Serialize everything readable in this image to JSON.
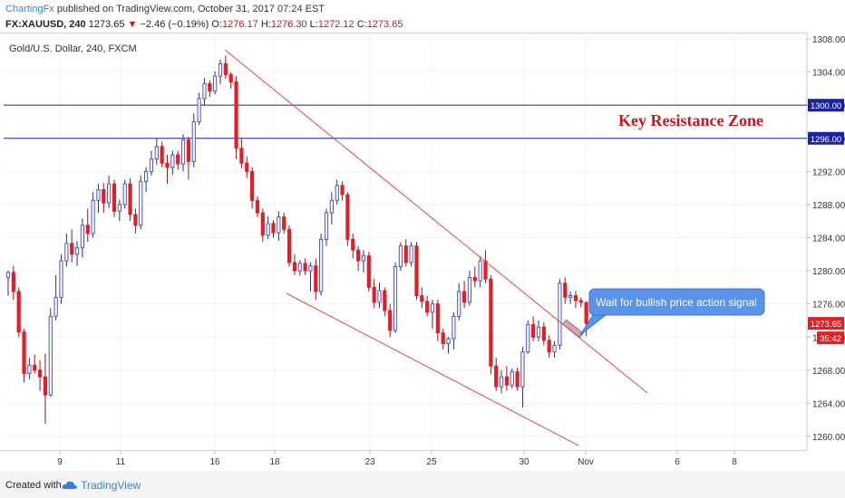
{
  "header": {
    "user": "ChartingFx",
    "published_text": " published on TradingView.com, October 31, 2017 07:24 EST",
    "symbol": "FX:XAUUSD, 240",
    "last": "1273.65",
    "change_arrow": "▼",
    "change": "−2.46 (−0.19%)",
    "open_label": "O:",
    "open": "1276.17",
    "high_label": "H:",
    "high": "1276.30",
    "low_label": "L:",
    "low": "1272.12",
    "close_label": "C:",
    "close": "1273.65"
  },
  "chart_title": "Gold/U.S. Dollar, 240, FXCM",
  "annotation_text": "Key Resistance Zone",
  "callout_text": "Wait for bullish price action signal",
  "footer": {
    "created_with": "Created with",
    "brand": "TradingView"
  },
  "colors": {
    "up": "#4a56c6",
    "down": "#e01f26",
    "resistance": "#1a23a8",
    "trend": "#e8444a",
    "callout": "#5b93e8"
  },
  "chart_data": {
    "type": "candlestick",
    "title": "Gold/U.S. Dollar, 240, FXCM",
    "xlabel": "",
    "ylabel": "",
    "ylim": [
      1258,
      1309
    ],
    "y_ticks": [
      "1308.00",
      "1304.00",
      "1300.00",
      "1296.00",
      "1292.00",
      "1288.00",
      "1284.00",
      "1280.00",
      "1276.00",
      "1272.00",
      "1268.00",
      "1264.00",
      "1260.00"
    ],
    "x_ticks": [
      "9",
      "11",
      "16",
      "18",
      "23",
      "25",
      "30",
      "Nov",
      "6",
      "8"
    ],
    "price_labels": {
      "last": "1273.65",
      "countdown": "35:42"
    },
    "horizontal_levels": [
      1300.0,
      1296.0
    ],
    "candles": [
      {
        "o": 1279.2,
        "h": 1280.0,
        "l": 1277.0,
        "c": 1279.8
      },
      {
        "o": 1279.8,
        "h": 1280.6,
        "l": 1276.5,
        "c": 1277.5
      },
      {
        "o": 1277.5,
        "h": 1278.0,
        "l": 1272.0,
        "c": 1272.6
      },
      {
        "o": 1272.6,
        "h": 1273.0,
        "l": 1266.5,
        "c": 1267.6
      },
      {
        "o": 1267.6,
        "h": 1269.5,
        "l": 1266.9,
        "c": 1268.6
      },
      {
        "o": 1268.6,
        "h": 1269.9,
        "l": 1267.6,
        "c": 1268.0
      },
      {
        "o": 1268.0,
        "h": 1269.2,
        "l": 1265.5,
        "c": 1267.2
      },
      {
        "o": 1267.2,
        "h": 1270.0,
        "l": 1261.5,
        "c": 1265.0
      },
      {
        "o": 1265.0,
        "h": 1275.5,
        "l": 1264.8,
        "c": 1274.5
      },
      {
        "o": 1274.5,
        "h": 1279.5,
        "l": 1274.0,
        "c": 1276.8
      },
      {
        "o": 1276.8,
        "h": 1282.0,
        "l": 1276.0,
        "c": 1281.2
      },
      {
        "o": 1281.2,
        "h": 1284.5,
        "l": 1280.5,
        "c": 1283.3
      },
      {
        "o": 1283.3,
        "h": 1285.0,
        "l": 1281.0,
        "c": 1282.0
      },
      {
        "o": 1282.0,
        "h": 1283.6,
        "l": 1280.6,
        "c": 1282.8
      },
      {
        "o": 1282.8,
        "h": 1286.3,
        "l": 1281.6,
        "c": 1285.5
      },
      {
        "o": 1285.5,
        "h": 1287.5,
        "l": 1283.5,
        "c": 1284.5
      },
      {
        "o": 1284.5,
        "h": 1289.5,
        "l": 1284.0,
        "c": 1288.5
      },
      {
        "o": 1288.5,
        "h": 1290.5,
        "l": 1287.0,
        "c": 1289.8
      },
      {
        "o": 1289.8,
        "h": 1290.6,
        "l": 1287.0,
        "c": 1288.2
      },
      {
        "o": 1288.2,
        "h": 1291.5,
        "l": 1287.6,
        "c": 1290.5
      },
      {
        "o": 1290.5,
        "h": 1291.0,
        "l": 1286.5,
        "c": 1287.2
      },
      {
        "o": 1287.2,
        "h": 1288.6,
        "l": 1286.0,
        "c": 1288.0
      },
      {
        "o": 1288.0,
        "h": 1291.0,
        "l": 1287.5,
        "c": 1290.5
      },
      {
        "o": 1290.5,
        "h": 1291.2,
        "l": 1286.0,
        "c": 1286.8
      },
      {
        "o": 1286.8,
        "h": 1287.5,
        "l": 1284.5,
        "c": 1285.5
      },
      {
        "o": 1285.5,
        "h": 1291.5,
        "l": 1285.0,
        "c": 1290.8
      },
      {
        "o": 1290.8,
        "h": 1292.5,
        "l": 1289.5,
        "c": 1292.0
      },
      {
        "o": 1292.0,
        "h": 1294.5,
        "l": 1291.5,
        "c": 1293.5
      },
      {
        "o": 1293.5,
        "h": 1296.0,
        "l": 1292.8,
        "c": 1295.0
      },
      {
        "o": 1295.0,
        "h": 1295.6,
        "l": 1292.5,
        "c": 1293.0
      },
      {
        "o": 1293.0,
        "h": 1294.0,
        "l": 1290.5,
        "c": 1292.5
      },
      {
        "o": 1292.5,
        "h": 1294.5,
        "l": 1291.6,
        "c": 1294.0
      },
      {
        "o": 1294.0,
        "h": 1294.5,
        "l": 1292.2,
        "c": 1292.9
      },
      {
        "o": 1292.9,
        "h": 1296.5,
        "l": 1292.0,
        "c": 1295.8
      },
      {
        "o": 1295.8,
        "h": 1296.2,
        "l": 1291.0,
        "c": 1293.2
      },
      {
        "o": 1293.2,
        "h": 1299.0,
        "l": 1292.5,
        "c": 1298.0
      },
      {
        "o": 1298.0,
        "h": 1301.5,
        "l": 1297.6,
        "c": 1300.8
      },
      {
        "o": 1300.8,
        "h": 1303.3,
        "l": 1300.0,
        "c": 1302.6
      },
      {
        "o": 1302.6,
        "h": 1303.0,
        "l": 1301.0,
        "c": 1301.7
      },
      {
        "o": 1301.7,
        "h": 1304.1,
        "l": 1301.3,
        "c": 1303.5
      },
      {
        "o": 1303.5,
        "h": 1305.5,
        "l": 1302.5,
        "c": 1305.0
      },
      {
        "o": 1305.0,
        "h": 1306.0,
        "l": 1303.2,
        "c": 1303.7
      },
      {
        "o": 1303.7,
        "h": 1304.0,
        "l": 1302.0,
        "c": 1302.8
      },
      {
        "o": 1302.8,
        "h": 1303.5,
        "l": 1293.5,
        "c": 1294.8
      },
      {
        "o": 1294.8,
        "h": 1296.0,
        "l": 1292.4,
        "c": 1293.0
      },
      {
        "o": 1293.0,
        "h": 1293.8,
        "l": 1291.2,
        "c": 1292.0
      },
      {
        "o": 1292.0,
        "h": 1292.5,
        "l": 1287.5,
        "c": 1288.5
      },
      {
        "o": 1288.5,
        "h": 1289.0,
        "l": 1286.5,
        "c": 1287.0
      },
      {
        "o": 1287.0,
        "h": 1287.5,
        "l": 1283.5,
        "c": 1284.3
      },
      {
        "o": 1284.3,
        "h": 1286.6,
        "l": 1283.8,
        "c": 1285.7
      },
      {
        "o": 1285.7,
        "h": 1286.1,
        "l": 1284.0,
        "c": 1284.6
      },
      {
        "o": 1284.6,
        "h": 1287.2,
        "l": 1283.6,
        "c": 1286.5
      },
      {
        "o": 1286.5,
        "h": 1287.0,
        "l": 1284.5,
        "c": 1285.0
      },
      {
        "o": 1285.0,
        "h": 1285.5,
        "l": 1280.5,
        "c": 1281.0
      },
      {
        "o": 1281.0,
        "h": 1282.0,
        "l": 1279.5,
        "c": 1280.0
      },
      {
        "o": 1280.0,
        "h": 1281.3,
        "l": 1279.4,
        "c": 1280.9
      },
      {
        "o": 1280.9,
        "h": 1281.5,
        "l": 1279.5,
        "c": 1280.0
      },
      {
        "o": 1280.0,
        "h": 1281.0,
        "l": 1277.5,
        "c": 1280.6
      },
      {
        "o": 1280.6,
        "h": 1281.5,
        "l": 1276.5,
        "c": 1277.5
      },
      {
        "o": 1277.5,
        "h": 1284.5,
        "l": 1277.0,
        "c": 1283.8
      },
      {
        "o": 1283.8,
        "h": 1287.5,
        "l": 1283.0,
        "c": 1287.0
      },
      {
        "o": 1287.0,
        "h": 1289.5,
        "l": 1285.6,
        "c": 1288.5
      },
      {
        "o": 1288.5,
        "h": 1291.0,
        "l": 1288.0,
        "c": 1290.3
      },
      {
        "o": 1290.3,
        "h": 1290.8,
        "l": 1288.5,
        "c": 1289.2
      },
      {
        "o": 1289.2,
        "h": 1289.5,
        "l": 1283.0,
        "c": 1283.8
      },
      {
        "o": 1283.8,
        "h": 1284.5,
        "l": 1281.5,
        "c": 1282.5
      },
      {
        "o": 1282.5,
        "h": 1283.0,
        "l": 1280.0,
        "c": 1281.2
      },
      {
        "o": 1281.2,
        "h": 1282.5,
        "l": 1279.8,
        "c": 1281.8
      },
      {
        "o": 1281.8,
        "h": 1282.3,
        "l": 1277.5,
        "c": 1278.0
      },
      {
        "o": 1278.0,
        "h": 1279.0,
        "l": 1275.5,
        "c": 1276.2
      },
      {
        "o": 1276.2,
        "h": 1278.6,
        "l": 1275.5,
        "c": 1277.6
      },
      {
        "o": 1277.6,
        "h": 1278.0,
        "l": 1274.5,
        "c": 1275.2
      },
      {
        "o": 1275.2,
        "h": 1276.0,
        "l": 1272.0,
        "c": 1272.8
      },
      {
        "o": 1272.8,
        "h": 1281.0,
        "l": 1272.5,
        "c": 1280.5
      },
      {
        "o": 1280.5,
        "h": 1283.5,
        "l": 1280.0,
        "c": 1283.0
      },
      {
        "o": 1283.0,
        "h": 1283.8,
        "l": 1280.5,
        "c": 1281.0
      },
      {
        "o": 1281.0,
        "h": 1283.5,
        "l": 1280.5,
        "c": 1283.0
      },
      {
        "o": 1283.0,
        "h": 1283.5,
        "l": 1276.5,
        "c": 1277.0
      },
      {
        "o": 1277.0,
        "h": 1278.0,
        "l": 1275.5,
        "c": 1276.3
      },
      {
        "o": 1276.3,
        "h": 1277.0,
        "l": 1274.5,
        "c": 1275.0
      },
      {
        "o": 1275.0,
        "h": 1276.5,
        "l": 1273.0,
        "c": 1276.0
      },
      {
        "o": 1276.0,
        "h": 1276.5,
        "l": 1271.5,
        "c": 1272.5
      },
      {
        "o": 1272.5,
        "h": 1273.0,
        "l": 1270.5,
        "c": 1271.2
      },
      {
        "o": 1271.2,
        "h": 1272.0,
        "l": 1270.0,
        "c": 1271.8
      },
      {
        "o": 1271.8,
        "h": 1275.0,
        "l": 1270.5,
        "c": 1274.5
      },
      {
        "o": 1274.5,
        "h": 1278.5,
        "l": 1274.0,
        "c": 1277.5
      },
      {
        "o": 1277.5,
        "h": 1278.8,
        "l": 1275.5,
        "c": 1276.2
      },
      {
        "o": 1276.2,
        "h": 1280.0,
        "l": 1275.8,
        "c": 1279.2
      },
      {
        "o": 1279.2,
        "h": 1280.5,
        "l": 1278.0,
        "c": 1278.8
      },
      {
        "o": 1278.8,
        "h": 1281.8,
        "l": 1278.0,
        "c": 1281.2
      },
      {
        "o": 1281.2,
        "h": 1282.5,
        "l": 1278.5,
        "c": 1279.0
      },
      {
        "o": 1279.0,
        "h": 1279.5,
        "l": 1267.5,
        "c": 1268.5
      },
      {
        "o": 1268.5,
        "h": 1269.5,
        "l": 1265.5,
        "c": 1266.0
      },
      {
        "o": 1266.0,
        "h": 1268.0,
        "l": 1265.2,
        "c": 1267.2
      },
      {
        "o": 1267.2,
        "h": 1268.5,
        "l": 1265.5,
        "c": 1266.2
      },
      {
        "o": 1266.2,
        "h": 1268.2,
        "l": 1265.8,
        "c": 1267.8
      },
      {
        "o": 1267.8,
        "h": 1268.3,
        "l": 1265.5,
        "c": 1266.0
      },
      {
        "o": 1266.0,
        "h": 1270.8,
        "l": 1263.5,
        "c": 1270.2
      },
      {
        "o": 1270.2,
        "h": 1274.0,
        "l": 1270.0,
        "c": 1273.5
      },
      {
        "o": 1273.5,
        "h": 1274.5,
        "l": 1271.5,
        "c": 1272.0
      },
      {
        "o": 1272.0,
        "h": 1274.0,
        "l": 1271.5,
        "c": 1273.2
      },
      {
        "o": 1273.2,
        "h": 1273.8,
        "l": 1271.0,
        "c": 1271.6
      },
      {
        "o": 1271.6,
        "h": 1272.2,
        "l": 1269.5,
        "c": 1270.2
      },
      {
        "o": 1270.2,
        "h": 1271.5,
        "l": 1269.5,
        "c": 1271.0
      },
      {
        "o": 1271.0,
        "h": 1279.0,
        "l": 1270.5,
        "c": 1278.5
      },
      {
        "o": 1278.5,
        "h": 1279.2,
        "l": 1276.0,
        "c": 1276.8
      },
      {
        "o": 1276.8,
        "h": 1277.5,
        "l": 1276.0,
        "c": 1277.0
      },
      {
        "o": 1277.0,
        "h": 1277.6,
        "l": 1275.5,
        "c": 1276.4
      },
      {
        "o": 1276.4,
        "h": 1276.8,
        "l": 1275.6,
        "c": 1276.2
      },
      {
        "o": 1276.17,
        "h": 1276.3,
        "l": 1272.12,
        "c": 1273.65
      }
    ]
  }
}
